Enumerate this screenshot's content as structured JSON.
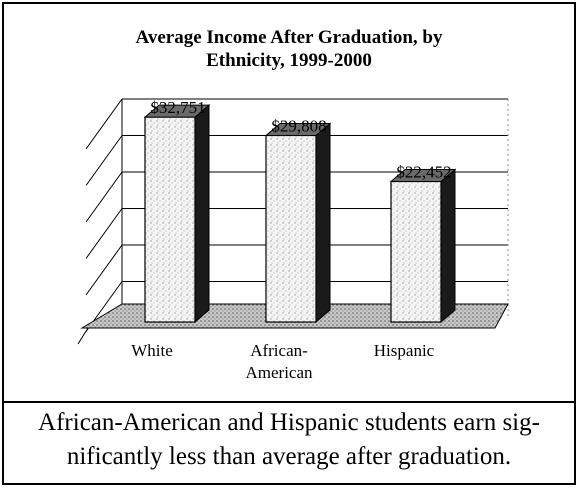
{
  "chart_data": {
    "type": "bar",
    "title_lines": [
      "Average Income After Graduation, by",
      "Ethnicity, 1999-2000"
    ],
    "categories": [
      [
        "White"
      ],
      [
        "African-",
        "American"
      ],
      [
        "Hispanic"
      ]
    ],
    "values": [
      32751,
      29808,
      22452
    ],
    "value_labels": [
      "$32,751",
      "$29,808",
      "$22,452"
    ],
    "ylim": [
      0,
      35000
    ],
    "grid": true,
    "style": "3d"
  },
  "caption_lines": [
    "African-American and Hispanic students earn sig-",
    "nificantly less than average after graduation."
  ],
  "colors": {
    "bar_front": "#f2f2f2",
    "bar_side": "#1a1a1a",
    "bar_top": "#6a6a6a",
    "floor": "#9a9a9a"
  }
}
